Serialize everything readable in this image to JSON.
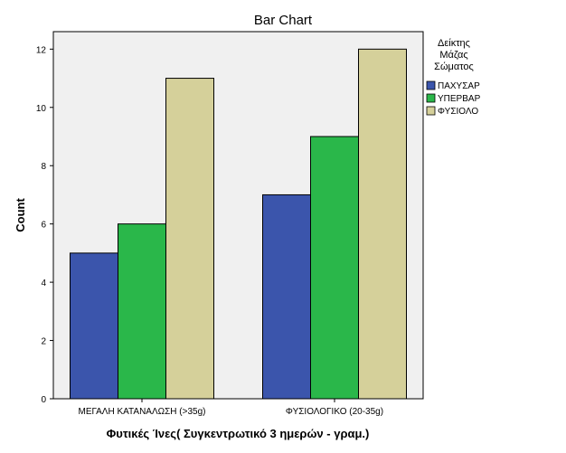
{
  "chart_data": {
    "type": "bar",
    "title": "Bar Chart",
    "xlabel": "Φυτικές Ίνες( Συγκεντρωτικό 3 ημερών - γραμ.)",
    "ylabel": "Count",
    "categories": [
      "ΜΕΓΑΛΗ ΚΑΤΑΝΑΛΩΣΗ (>35g)",
      "ΦΥΣΙΟΛΟΓΙΚΟ (20-35g)"
    ],
    "series": [
      {
        "name": "ΠΑΧΥΣΑΡ",
        "values": [
          5,
          7
        ],
        "color": "#3b55ac"
      },
      {
        "name": "ΥΠΕΡΒΑΡ",
        "values": [
          6,
          9
        ],
        "color": "#2ab74a"
      },
      {
        "name": "ΦΥΣΙΟΛΟ",
        "values": [
          11,
          12
        ],
        "color": "#d5d09a"
      }
    ],
    "ylim": [
      0,
      12.6
    ],
    "yticks": [
      0,
      2,
      4,
      6,
      8,
      10,
      12
    ],
    "legend": {
      "title_lines": [
        "Δείκτης",
        "Μάζας",
        "Σώματος"
      ],
      "placement": "right"
    },
    "plot_background": "#f0f0f0",
    "grid": false
  }
}
